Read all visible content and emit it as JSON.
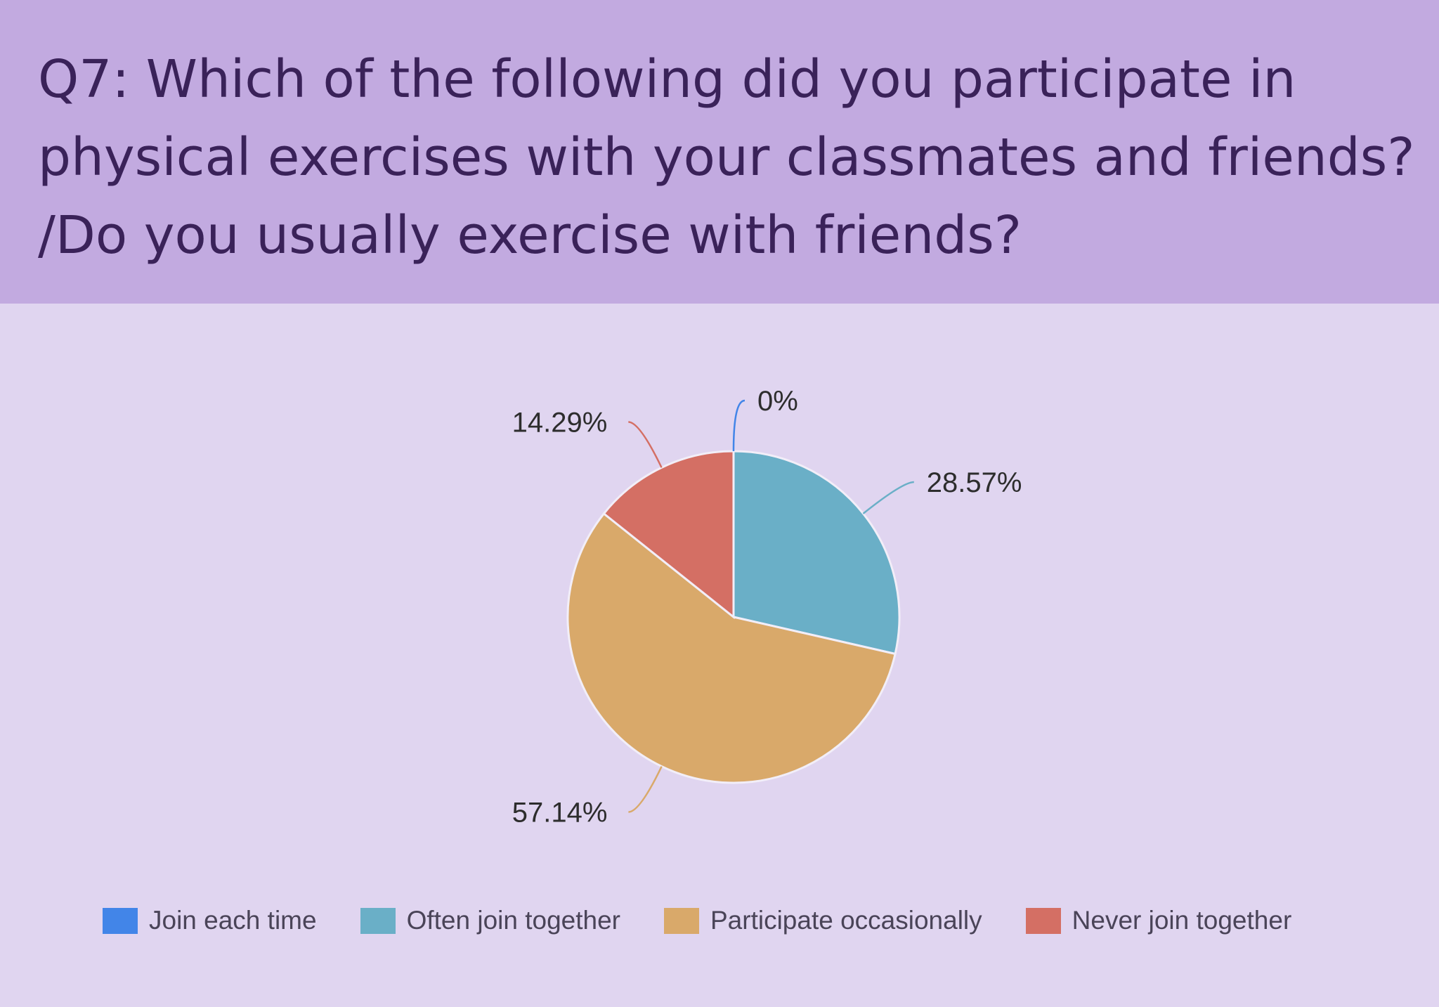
{
  "header": {
    "title": "Q7: Which of the following did you participate in\nphysical exercises with your classmates and friends?\n/Do you usually exercise with friends?"
  },
  "chart_data": {
    "type": "pie",
    "title": "Q7: Which of the following did you participate in physical exercises with your classmates and friends? /Do you usually exercise with friends?",
    "slices": [
      {
        "name": "Join each time",
        "value": 0,
        "label": "0%",
        "color": "#4285e8"
      },
      {
        "name": "Often join together",
        "value": 28.57,
        "label": "28.57%",
        "color": "#6aafc7"
      },
      {
        "name": "Participate occasionally",
        "value": 57.14,
        "label": "57.14%",
        "color": "#d9a96a"
      },
      {
        "name": "Never join together",
        "value": 14.29,
        "label": "14.29%",
        "color": "#d46f64"
      }
    ],
    "legend_position": "bottom"
  }
}
